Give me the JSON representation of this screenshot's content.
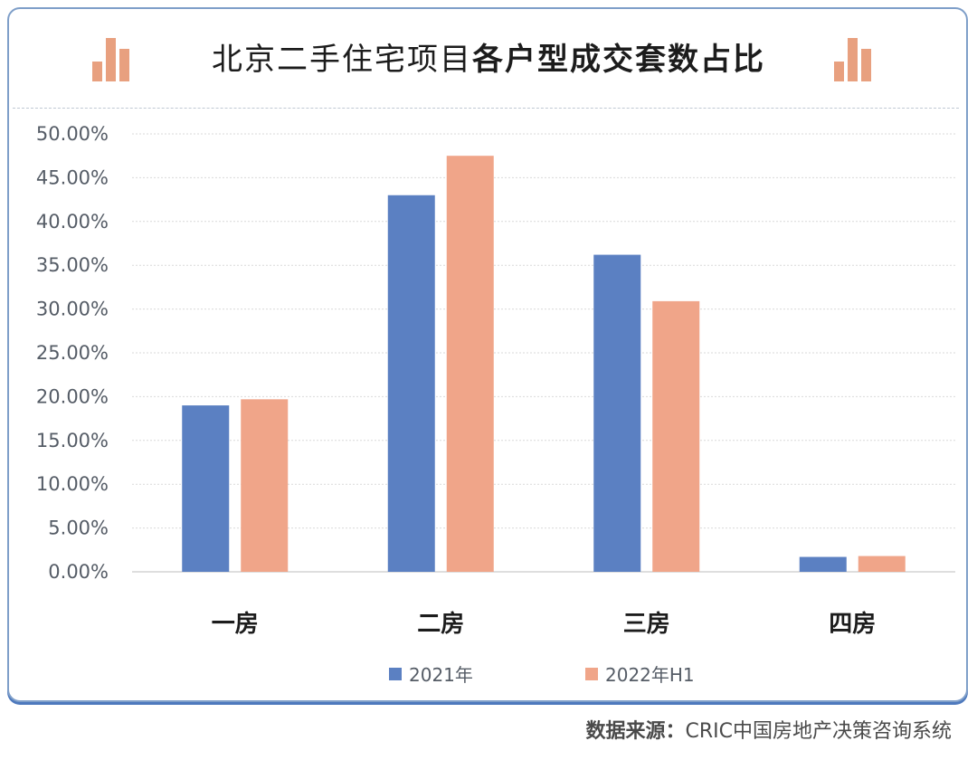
{
  "title": {
    "part1": "北京二手住宅项目",
    "part2": "各户型成交套数占比"
  },
  "source": {
    "label": "数据来源：",
    "text": "CRIC中国房地产决策咨询系统"
  },
  "colors": {
    "series_2021": "#5b80c2",
    "series_2022": "#f0a589",
    "icon": "#e8a07f",
    "card_border": "#7f9fc9",
    "grid": "#d9d9d9"
  },
  "decor": {
    "title_icon_left": "bar-chart-icon",
    "title_icon_right": "bar-chart-icon"
  },
  "chart_data": {
    "type": "bar",
    "categories": [
      "一房",
      "二房",
      "三房",
      "四房"
    ],
    "series": [
      {
        "name": "2021年",
        "values": [
          19.0,
          43.0,
          36.2,
          1.7
        ]
      },
      {
        "name": "2022年H1",
        "values": [
          19.7,
          47.5,
          30.9,
          1.8
        ]
      }
    ],
    "ylim": [
      0,
      50
    ],
    "yticks": [
      "0.00%",
      "5.00%",
      "10.00%",
      "15.00%",
      "20.00%",
      "25.00%",
      "30.00%",
      "35.00%",
      "40.00%",
      "45.00%",
      "50.00%"
    ],
    "ytick_values": [
      0,
      5,
      10,
      15,
      20,
      25,
      30,
      35,
      40,
      45,
      50
    ],
    "title": "北京二手住宅项目各户型成交套数占比",
    "xlabel": "",
    "ylabel": "",
    "grid": true,
    "legend_position": "bottom"
  }
}
